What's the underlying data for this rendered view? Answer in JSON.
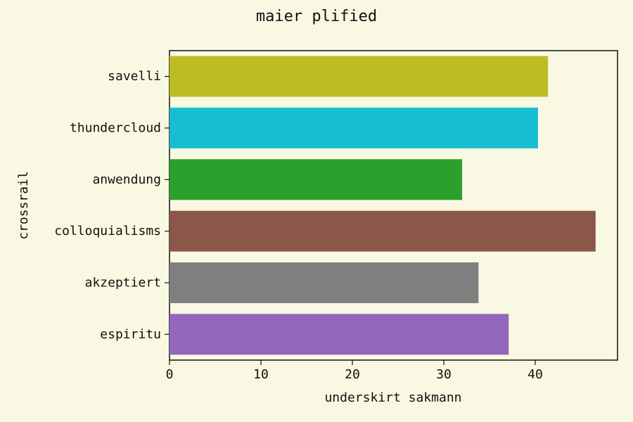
{
  "chart_data": {
    "type": "bar",
    "orientation": "horizontal",
    "title": "maier plified",
    "xlabel": "underskirt sakmann",
    "ylabel": "crossrail",
    "categories": [
      "savelli",
      "thundercloud",
      "anwendung",
      "colloquialisms",
      "akzeptiert",
      "espiritu"
    ],
    "values": [
      41.4,
      40.3,
      32.0,
      46.6,
      33.8,
      37.1
    ],
    "colors": [
      "#bcbd22",
      "#17becf",
      "#2ca02c",
      "#8c564b",
      "#7f7f7f",
      "#9467bd"
    ],
    "xlim": [
      0,
      49
    ],
    "xticks": [
      0,
      10,
      20,
      30,
      40
    ],
    "grid": false,
    "legend": "none",
    "background": "#f9f8e2"
  }
}
